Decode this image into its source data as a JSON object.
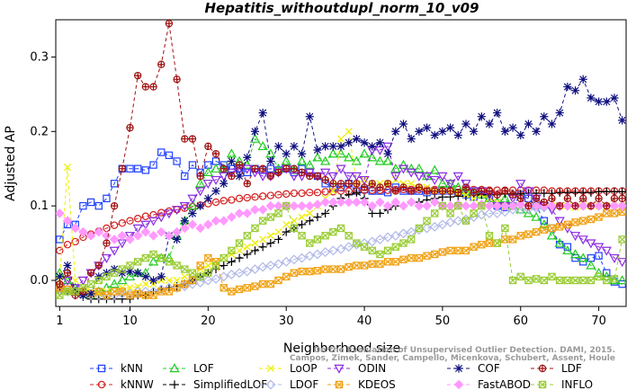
{
  "chart_data": {
    "type": "line",
    "title": "Hepatitis_withoutdupl_norm_10_v09",
    "xlabel": "Neighborhood size",
    "ylabel": "Adjusted AP",
    "xlim": [
      0.5,
      73.5
    ],
    "ylim": [
      -0.035,
      0.35
    ],
    "x_ticks": [
      1,
      10,
      20,
      30,
      40,
      50,
      60,
      70
    ],
    "x_tick_labels": [
      "1",
      "10",
      "20",
      "30",
      "40",
      "50",
      "60",
      "70"
    ],
    "y_ticks": [
      0.0,
      0.1,
      0.2,
      0.3
    ],
    "y_tick_labels": [
      "0.0",
      "0.1",
      "0.2",
      "0.3"
    ],
    "grid": false,
    "legend_position": "bottom",
    "credit": {
      "line1": "Campos, Zimek, Sander, Campello, Micenkova, Schubert, Assent, Houle",
      "line2": "On the Evaluation of Unsupervised Outlier Detection. DAMI, 2015."
    },
    "x_start": 1,
    "series": [
      {
        "name": "kNN",
        "color": "#1f3fff",
        "marker": "square",
        "values": [
          0.055,
          0.075,
          0.075,
          0.1,
          0.105,
          0.1,
          0.11,
          0.13,
          0.15,
          0.15,
          0.15,
          0.148,
          0.155,
          0.172,
          0.168,
          0.16,
          0.14,
          0.155,
          0.145,
          0.155,
          0.16,
          0.155,
          0.15,
          0.15,
          0.145,
          0.15,
          0.148,
          0.15,
          0.148,
          0.15,
          0.145,
          0.15,
          0.145,
          0.14,
          0.13,
          0.125,
          0.125,
          0.13,
          0.12,
          0.122,
          0.12,
          0.12,
          0.118,
          0.125,
          0.12,
          0.12,
          0.12,
          0.118,
          0.12,
          0.12,
          0.12,
          0.118,
          0.115,
          0.112,
          0.115,
          0.112,
          0.1,
          0.098,
          0.1,
          0.115,
          0.11,
          0.1,
          0.08,
          0.07,
          0.048,
          0.045,
          0.03,
          0.025,
          0.03,
          0.033,
          0.01,
          -0.002,
          -0.005
        ]
      },
      {
        "name": "kNNW",
        "color": "#d42020",
        "marker": "circle",
        "values": [
          0.04,
          0.048,
          0.052,
          0.058,
          0.062,
          0.066,
          0.07,
          0.074,
          0.077,
          0.08,
          0.083,
          0.086,
          0.088,
          0.091,
          0.093,
          0.095,
          0.097,
          0.099,
          0.101,
          0.103,
          0.105,
          0.107,
          0.108,
          0.11,
          0.111,
          0.112,
          0.113,
          0.114,
          0.115,
          0.116,
          0.117,
          0.117,
          0.118,
          0.118,
          0.119,
          0.119,
          0.12,
          0.12,
          0.12,
          0.121,
          0.121,
          0.121,
          0.121,
          0.122,
          0.122,
          0.122,
          0.122,
          0.122,
          0.122,
          0.122,
          0.122,
          0.122,
          0.122,
          0.122,
          0.122,
          0.121,
          0.121,
          0.121,
          0.121,
          0.121,
          0.121,
          0.121,
          0.121,
          0.12,
          0.12,
          0.12,
          0.12,
          0.12,
          0.12,
          0.12,
          0.12,
          0.12,
          0.12
        ]
      },
      {
        "name": "LOF",
        "color": "#22cc22",
        "marker": "triangle",
        "values": [
          0.01,
          0.0,
          -0.01,
          -0.015,
          -0.02,
          -0.015,
          -0.01,
          -0.005,
          0.0,
          0.005,
          0.01,
          0.01,
          0.025,
          0.03,
          0.03,
          0.06,
          0.08,
          0.1,
          0.13,
          0.145,
          0.15,
          0.15,
          0.17,
          0.16,
          0.155,
          0.19,
          0.18,
          0.17,
          0.15,
          0.16,
          0.148,
          0.16,
          0.155,
          0.165,
          0.16,
          0.17,
          0.17,
          0.165,
          0.16,
          0.17,
          0.165,
          0.16,
          0.16,
          0.15,
          0.155,
          0.15,
          0.15,
          0.14,
          0.148,
          0.13,
          0.13,
          0.125,
          0.12,
          0.12,
          0.115,
          0.11,
          0.105,
          0.11,
          0.1,
          0.095,
          0.09,
          0.085,
          0.075,
          0.06,
          0.05,
          0.04,
          0.035,
          0.03,
          0.02,
          0.01,
          0.005,
          0.0,
          0.0
        ]
      },
      {
        "name": "SimplifiedLOF",
        "color": "#000000",
        "marker": "plus",
        "values": [
          -0.01,
          -0.015,
          -0.02,
          -0.022,
          -0.025,
          -0.025,
          -0.025,
          -0.025,
          -0.025,
          -0.025,
          -0.02,
          -0.02,
          -0.015,
          -0.012,
          -0.01,
          -0.008,
          -0.005,
          0.0,
          0.005,
          0.01,
          0.015,
          0.02,
          0.025,
          0.03,
          0.035,
          0.04,
          0.045,
          0.05,
          0.055,
          0.065,
          0.07,
          0.075,
          0.08,
          0.085,
          0.09,
          0.1,
          0.11,
          0.115,
          0.118,
          0.11,
          0.09,
          0.09,
          0.095,
          0.1,
          0.1,
          0.105,
          0.105,
          0.108,
          0.11,
          0.112,
          0.112,
          0.113,
          0.113,
          0.114,
          0.115,
          0.115,
          0.115,
          0.116,
          0.116,
          0.116,
          0.117,
          0.117,
          0.117,
          0.117,
          0.118,
          0.118,
          0.118,
          0.118,
          0.118,
          0.119,
          0.119,
          0.119,
          0.119
        ]
      },
      {
        "name": "LoOP",
        "color": "#eeee00",
        "marker": "x",
        "values": [
          0.0,
          0.152,
          0.0,
          -0.01,
          -0.015,
          -0.018,
          -0.015,
          -0.015,
          -0.01,
          -0.01,
          -0.008,
          -0.005,
          -0.005,
          0.0,
          0.0,
          0.0,
          0.005,
          0.01,
          0.015,
          0.02,
          0.025,
          0.03,
          0.035,
          0.04,
          0.045,
          0.05,
          0.055,
          0.06,
          0.065,
          0.075,
          0.08,
          0.085,
          0.09,
          0.1,
          0.11,
          0.12,
          0.19,
          0.2,
          0.13,
          0.135,
          0.13,
          0.13,
          0.13,
          0.135,
          0.13,
          0.13,
          0.125,
          0.125,
          0.12,
          0.12,
          0.12,
          0.118,
          0.115,
          0.11,
          0.115,
          0.11,
          0.105,
          0.1,
          0.1,
          0.1,
          0.1,
          0.1,
          0.1,
          0.1,
          0.1,
          0.1,
          0.098,
          0.1,
          0.1,
          0.1,
          0.1,
          0.1,
          0.1
        ]
      },
      {
        "name": "LDOF",
        "color": "#b0b8e8",
        "marker": "diamond",
        "values": [
          -0.01,
          -0.015,
          -0.015,
          -0.02,
          -0.02,
          -0.02,
          -0.02,
          -0.02,
          -0.018,
          -0.018,
          -0.015,
          -0.015,
          -0.015,
          -0.012,
          -0.01,
          -0.01,
          -0.008,
          -0.005,
          -0.003,
          0.0,
          0.002,
          0.005,
          0.008,
          0.01,
          0.012,
          0.015,
          0.018,
          0.02,
          0.022,
          0.025,
          0.028,
          0.03,
          0.033,
          0.035,
          0.038,
          0.04,
          0.042,
          0.045,
          0.048,
          0.05,
          0.052,
          0.055,
          0.058,
          0.06,
          0.063,
          0.065,
          0.068,
          0.07,
          0.072,
          0.075,
          0.078,
          0.08,
          0.082,
          0.085,
          0.088,
          0.09,
          0.09,
          0.092,
          0.095,
          0.095,
          0.096,
          0.097,
          0.098,
          0.098,
          0.099,
          0.1,
          0.1,
          0.1,
          0.1,
          0.1,
          0.1,
          0.1,
          0.1
        ]
      },
      {
        "name": "ODIN",
        "color": "#8a2be2",
        "marker": "triangle-down",
        "values": [
          -0.015,
          0.0,
          -0.01,
          0.0,
          0.01,
          0.02,
          0.03,
          0.04,
          0.05,
          0.06,
          0.07,
          0.075,
          0.08,
          0.085,
          0.09,
          0.095,
          0.1,
          0.11,
          0.12,
          0.13,
          0.135,
          0.14,
          0.145,
          0.15,
          0.15,
          0.145,
          0.14,
          0.14,
          0.145,
          0.15,
          0.14,
          0.14,
          0.145,
          0.14,
          0.145,
          0.14,
          0.15,
          0.14,
          0.14,
          0.135,
          0.175,
          0.175,
          0.18,
          0.14,
          0.15,
          0.145,
          0.14,
          0.14,
          0.135,
          0.14,
          0.13,
          0.14,
          0.13,
          0.12,
          0.12,
          0.115,
          0.1,
          0.1,
          0.11,
          0.13,
          0.12,
          0.11,
          0.1,
          0.095,
          0.08,
          0.07,
          0.06,
          0.055,
          0.05,
          0.045,
          0.04,
          0.03,
          0.025
        ]
      },
      {
        "name": "KDEOS",
        "color": "#f0a010",
        "marker": "square-x",
        "values": [
          -0.01,
          -0.012,
          -0.015,
          -0.015,
          -0.018,
          -0.015,
          -0.02,
          -0.015,
          -0.015,
          -0.02,
          -0.018,
          -0.02,
          -0.02,
          -0.015,
          -0.015,
          -0.01,
          -0.005,
          0.0,
          0.02,
          0.03,
          0.025,
          -0.01,
          -0.015,
          -0.012,
          -0.01,
          -0.008,
          -0.005,
          -0.005,
          0.0,
          0.005,
          0.01,
          0.012,
          0.012,
          0.013,
          0.015,
          0.015,
          0.015,
          0.018,
          0.02,
          0.02,
          0.022,
          0.022,
          0.025,
          0.025,
          0.028,
          0.03,
          0.03,
          0.033,
          0.035,
          0.038,
          0.04,
          0.04,
          0.04,
          0.045,
          0.048,
          0.05,
          0.05,
          0.055,
          0.055,
          0.06,
          0.062,
          0.065,
          0.068,
          0.07,
          0.072,
          0.075,
          0.078,
          0.08,
          0.082,
          0.085,
          0.09,
          0.09,
          0.092
        ]
      },
      {
        "name": "COF",
        "color": "#101080",
        "marker": "asterisk",
        "values": [
          0.005,
          0.02,
          -0.015,
          -0.02,
          -0.018,
          0.005,
          0.01,
          0.015,
          0.01,
          0.012,
          0.01,
          0.005,
          0.0,
          0.005,
          0.06,
          0.055,
          0.08,
          0.09,
          0.1,
          0.11,
          0.12,
          0.13,
          0.16,
          0.14,
          0.165,
          0.2,
          0.225,
          0.16,
          0.18,
          0.17,
          0.18,
          0.17,
          0.22,
          0.175,
          0.18,
          0.18,
          0.18,
          0.185,
          0.19,
          0.185,
          0.18,
          0.185,
          0.17,
          0.2,
          0.21,
          0.19,
          0.2,
          0.205,
          0.195,
          0.2,
          0.205,
          0.195,
          0.21,
          0.2,
          0.22,
          0.21,
          0.225,
          0.2,
          0.205,
          0.195,
          0.21,
          0.2,
          0.22,
          0.21,
          0.225,
          0.26,
          0.255,
          0.27,
          0.245,
          0.24,
          0.24,
          0.245,
          0.215
        ]
      },
      {
        "name": "FastABOD",
        "color": "#ff99ff",
        "marker": "diamond-filled",
        "values": [
          0.09,
          0.08,
          0.07,
          0.065,
          0.06,
          0.065,
          0.06,
          0.055,
          0.06,
          0.055,
          0.06,
          0.065,
          0.06,
          0.065,
          0.06,
          0.065,
          0.07,
          0.075,
          0.07,
          0.075,
          0.08,
          0.08,
          0.085,
          0.09,
          0.09,
          0.095,
          0.095,
          0.1,
          0.1,
          0.1,
          0.1,
          0.1,
          0.1,
          0.102,
          0.105,
          0.105,
          0.105,
          0.105,
          0.105,
          0.105,
          0.1,
          0.105,
          0.1,
          0.105,
          0.1,
          0.105,
          0.1,
          0.1,
          0.105,
          0.1,
          0.1,
          0.102,
          0.1,
          0.1,
          0.102,
          0.1,
          0.1,
          0.1,
          0.1,
          0.102,
          0.1,
          0.1,
          0.1,
          0.1,
          0.1,
          0.1,
          0.1,
          0.1,
          0.1,
          0.1,
          0.1,
          0.1,
          0.1
        ]
      },
      {
        "name": "LDF",
        "color": "#a01010",
        "marker": "circle-plus",
        "values": [
          -0.005,
          0.01,
          -0.02,
          -0.015,
          0.01,
          0.02,
          0.05,
          0.1,
          0.15,
          0.205,
          0.275,
          0.26,
          0.26,
          0.29,
          0.345,
          0.27,
          0.19,
          0.19,
          0.14,
          0.18,
          0.17,
          0.15,
          0.14,
          0.155,
          0.13,
          0.15,
          0.15,
          0.14,
          0.145,
          0.15,
          0.15,
          0.145,
          0.14,
          0.14,
          0.135,
          0.13,
          0.13,
          0.13,
          0.13,
          0.125,
          0.13,
          0.125,
          0.13,
          0.12,
          0.125,
          0.12,
          0.125,
          0.12,
          0.12,
          0.12,
          0.12,
          0.118,
          0.125,
          0.118,
          0.12,
          0.12,
          0.115,
          0.12,
          0.115,
          0.11,
          0.1,
          0.11,
          0.105,
          0.11,
          0.1,
          0.11,
          0.1,
          0.11,
          0.1,
          0.11,
          0.1,
          0.11,
          0.11
        ]
      },
      {
        "name": "INFLO",
        "color": "#99cc33",
        "marker": "square-x",
        "values": [
          -0.02,
          -0.015,
          -0.015,
          -0.01,
          -0.005,
          0.0,
          0.005,
          0.01,
          0.015,
          0.02,
          0.025,
          0.03,
          0.035,
          0.03,
          0.025,
          0.02,
          0.015,
          0.01,
          0.005,
          0.01,
          0.02,
          0.03,
          0.04,
          0.05,
          0.06,
          0.07,
          0.08,
          0.085,
          0.09,
          0.1,
          0.07,
          0.06,
          0.05,
          0.055,
          0.06,
          0.065,
          0.07,
          0.06,
          0.05,
          0.045,
          0.04,
          0.035,
          0.04,
          0.045,
          0.05,
          0.055,
          0.07,
          0.08,
          0.09,
          0.1,
          0.09,
          0.1,
          0.08,
          0.09,
          0.1,
          0.06,
          0.05,
          0.07,
          0.0,
          0.005,
          0.0,
          0.002,
          0.0,
          0.005,
          0.0,
          0.0,
          0.0,
          0.0,
          0.0,
          0.005,
          0.0,
          0.002,
          0.055
        ]
      }
    ]
  }
}
